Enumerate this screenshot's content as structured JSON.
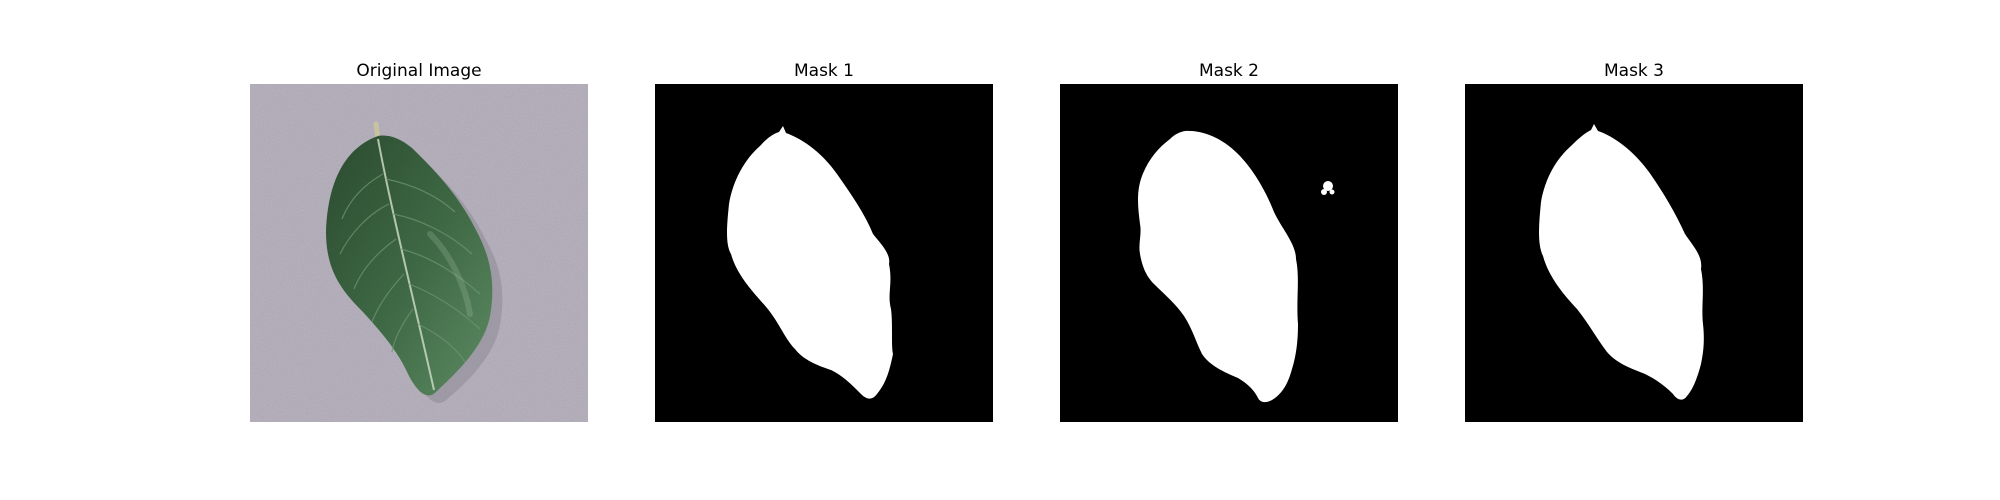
{
  "panels": [
    {
      "title": "Original Image",
      "kind": "photo"
    },
    {
      "title": "Mask 1",
      "kind": "mask"
    },
    {
      "title": "Mask 2",
      "kind": "mask"
    },
    {
      "title": "Mask 3",
      "kind": "mask"
    }
  ],
  "colors": {
    "background": "#ffffff",
    "mask_background": "#000000",
    "mask_foreground": "#ffffff",
    "photo_background": "#b9b4c0",
    "leaf_dark": "#2f5334",
    "leaf_light": "#4e7a53"
  }
}
